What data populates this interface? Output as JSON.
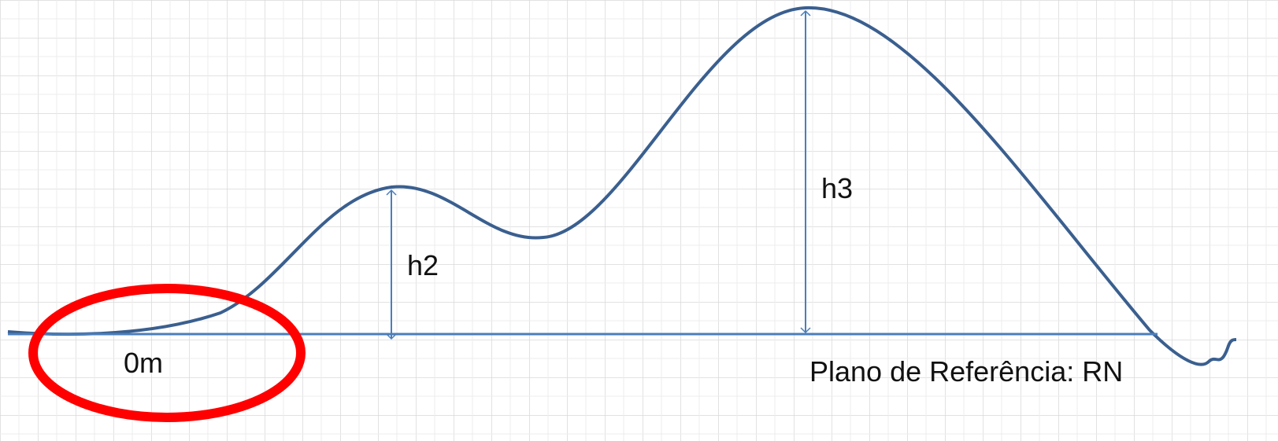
{
  "labels": {
    "h2": "h2",
    "h3": "h3",
    "origin": "0m",
    "reference": "Plano de Referência: RN"
  }
}
